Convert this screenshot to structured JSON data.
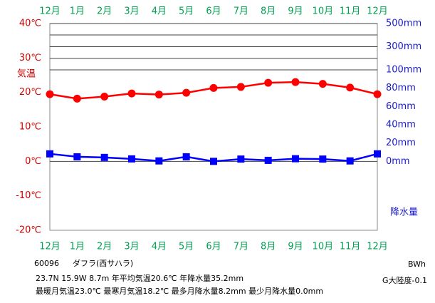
{
  "chart_data": {
    "type": "line",
    "x": [
      "12月",
      "1月",
      "2月",
      "3月",
      "4月",
      "5月",
      "6月",
      "7月",
      "8月",
      "9月",
      "10月",
      "11月",
      "12月"
    ],
    "ylabel": "気温",
    "y2label": "降水量",
    "ylim": [
      -20,
      40
    ],
    "yticks": [
      {
        "value": -20,
        "label": "-20℃"
      },
      {
        "value": -10,
        "label": "-10℃"
      },
      {
        "value": 0,
        "label": "0℃"
      },
      {
        "value": 10,
        "label": "10℃"
      },
      {
        "value": 20,
        "label": "20℃"
      },
      {
        "value": 30,
        "label": "30℃"
      },
      {
        "value": 40,
        "label": "40℃"
      }
    ],
    "y2lim": [
      0,
      500
    ],
    "y2ticks": [
      {
        "value": 0,
        "label": "0mm"
      },
      {
        "value": 20,
        "label": "20mm"
      },
      {
        "value": 40,
        "label": "40mm"
      },
      {
        "value": 60,
        "label": "60mm"
      },
      {
        "value": 80,
        "label": "80mm"
      },
      {
        "value": 100,
        "label": "100mm"
      },
      {
        "value": 300,
        "label": "300mm"
      },
      {
        "value": 500,
        "label": "500mm"
      }
    ],
    "series": [
      {
        "name": "気温",
        "color": "#ff0000",
        "values": [
          19.5,
          18.2,
          18.8,
          19.7,
          19.4,
          19.9,
          21.3,
          21.6,
          22.8,
          23.0,
          22.5,
          21.4,
          19.5
        ]
      },
      {
        "name": "降水量",
        "color": "#0000ff",
        "axis": "y2",
        "values": [
          8.2,
          5.0,
          4.3,
          2.7,
          0.5,
          5.0,
          0.0,
          2.5,
          1.1,
          2.9,
          2.5,
          0.5,
          8.2
        ]
      }
    ]
  },
  "info": {
    "station_id": "60096",
    "station_name": "ダフラ(西サハラ)",
    "line1": "23.7N  15.9W  8.7m  年平均気温20.6℃  年降水量35.2mm",
    "line2": "最暖月気温23.0℃  最寒月気温18.2℃  最多月降水量8.2mm  最少月降水量0.0mm",
    "climate": "BWh",
    "continentality": "G大陸度-0.1"
  }
}
